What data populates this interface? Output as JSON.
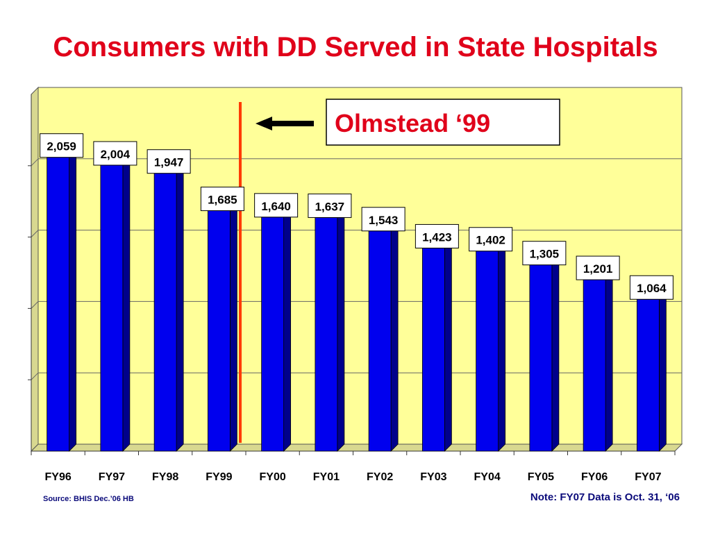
{
  "title": "Consumers with DD Served in State Hospitals",
  "chart_data": {
    "type": "bar",
    "title": "Consumers with DD Served in State Hospitals",
    "categories": [
      "FY96",
      "FY97",
      "FY98",
      "FY99",
      "FY00",
      "FY01",
      "FY02",
      "FY03",
      "FY04",
      "FY05",
      "FY06",
      "FY07"
    ],
    "values": [
      2059,
      2004,
      1947,
      1685,
      1640,
      1637,
      1543,
      1423,
      1402,
      1305,
      1201,
      1064
    ],
    "data_labels": [
      "2,059",
      "2,004",
      "1,947",
      "1,685",
      "1,640",
      "1,637",
      "1,543",
      "1,423",
      "1,402",
      "1,305",
      "1,201",
      "1,064"
    ],
    "ylim": [
      0,
      2500
    ],
    "grid": true,
    "legend": "none",
    "annotation": {
      "text": "Olmstead ‘99",
      "marker_between": [
        "FY99",
        "FY00"
      ]
    },
    "colors": {
      "bar": "#0000ee",
      "bar_side": "#00008b",
      "plot_background": "#ffff99",
      "annotation_text": "#e0001a",
      "marker_line": "#ff3b00"
    }
  },
  "source": "Source: BHIS Dec.’06 HB",
  "note": "Note:  FY07 Data is Oct. 31, ‘06"
}
